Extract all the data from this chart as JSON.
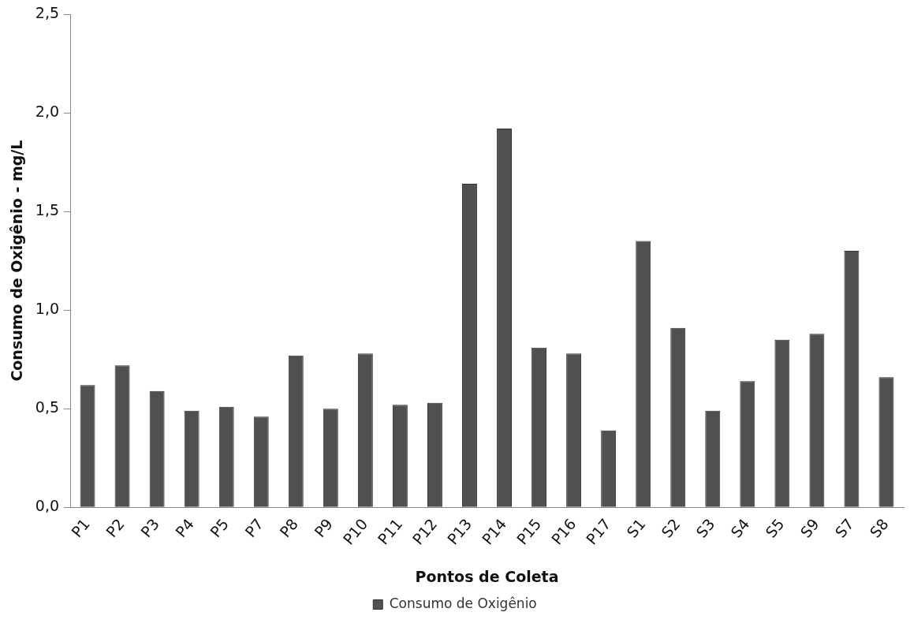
{
  "chart_data": {
    "type": "bar",
    "xlabel": "Pontos de Coleta",
    "ylabel": "Consumo de Oxigênio - mg/L",
    "categories": [
      "P1",
      "P2",
      "P3",
      "P4",
      "P5",
      "P7",
      "P8",
      "P9",
      "P10",
      "P11",
      "P12",
      "P13",
      "P14",
      "P15",
      "P16",
      "P17",
      "S1",
      "S2",
      "S3",
      "S4",
      "S5",
      "S9",
      "S7",
      "S8"
    ],
    "series": [
      {
        "name": "Consumo de Oxigênio",
        "color": "#505050",
        "values": [
          0.62,
          0.72,
          0.59,
          0.49,
          0.51,
          0.46,
          0.77,
          0.5,
          0.78,
          0.52,
          0.53,
          1.64,
          1.92,
          0.81,
          0.78,
          0.39,
          1.35,
          0.91,
          0.49,
          0.64,
          0.85,
          0.88,
          1.3,
          0.66
        ]
      }
    ],
    "ylim": [
      0,
      2.5
    ],
    "yticks": [
      {
        "value": 0,
        "label": "0,0"
      },
      {
        "value": 0.5,
        "label": "0,5"
      },
      {
        "value": 1,
        "label": "1,0"
      },
      {
        "value": 1.5,
        "label": "1,5"
      },
      {
        "value": 2,
        "label": "2,0"
      },
      {
        "value": 2.5,
        "label": "2,5"
      }
    ],
    "grid": false,
    "legend": "bottom"
  }
}
